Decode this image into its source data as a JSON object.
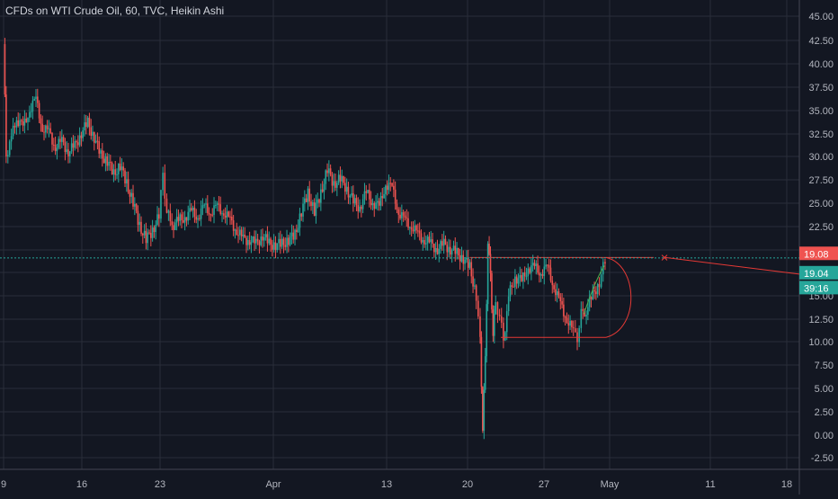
{
  "header": {
    "symbol_title": "CFDs on WTI Crude Oil, 60, TVC, Heikin Ashi"
  },
  "colors": {
    "background": "#131722",
    "grid": "#2a2e39",
    "up": "#26a69a",
    "down": "#ef5350",
    "axis_text": "#b2b5be",
    "drawing": "#e53935",
    "price_line": "#26a69a"
  },
  "chart_data": {
    "type": "candlestick",
    "style": "Heikin Ashi",
    "title": "CFDs on WTI Crude Oil, 60, TVC, Heikin Ashi",
    "grid": true,
    "y_ticks": [
      "45.00",
      "42.50",
      "40.00",
      "37.50",
      "35.00",
      "32.50",
      "30.00",
      "27.50",
      "25.00",
      "22.50",
      "20.00",
      "17.50",
      "15.00",
      "12.50",
      "10.00",
      "7.50",
      "5.00",
      "2.50",
      "0.00",
      "-2.50"
    ],
    "x_ticks": [
      "9",
      "16",
      "23",
      "Apr",
      "13",
      "20",
      "27",
      "May",
      "11",
      "18"
    ],
    "ylim": [
      -3.8,
      46.5
    ],
    "price_series_approx": [
      [
        9,
        42
      ],
      [
        9.2,
        30
      ],
      [
        9.6,
        32
      ],
      [
        10,
        34
      ],
      [
        10.5,
        33
      ],
      [
        11,
        35
      ],
      [
        11.5,
        36
      ],
      [
        12,
        33
      ],
      [
        12.5,
        32.5
      ],
      [
        13,
        31
      ],
      [
        13.5,
        31.5
      ],
      [
        14,
        30.5
      ],
      [
        14.5,
        31
      ],
      [
        15,
        32.5
      ],
      [
        15.5,
        33.5
      ],
      [
        16,
        32
      ],
      [
        16.5,
        30
      ],
      [
        17,
        29.5
      ],
      [
        17.5,
        28
      ],
      [
        18,
        29
      ],
      [
        18.5,
        27
      ],
      [
        19,
        25
      ],
      [
        19.5,
        22.5
      ],
      [
        20,
        21
      ],
      [
        20.5,
        22
      ],
      [
        21,
        23.5
      ],
      [
        21.3,
        28
      ],
      [
        21.6,
        24
      ],
      [
        22,
        22.5
      ],
      [
        22.5,
        23
      ],
      [
        23,
        23.5
      ],
      [
        23.5,
        24
      ],
      [
        24,
        23.5
      ],
      [
        24.5,
        24.5
      ],
      [
        25,
        24
      ],
      [
        25.5,
        24.5
      ],
      [
        26,
        24
      ],
      [
        26.5,
        23
      ],
      [
        27,
        22
      ],
      [
        27.5,
        21
      ],
      [
        28,
        21
      ],
      [
        28.5,
        20.5
      ],
      [
        29,
        21.5
      ],
      [
        29.5,
        20.5
      ],
      [
        30,
        20.5
      ],
      [
        30.5,
        20.5
      ],
      [
        31,
        21
      ],
      [
        31.5,
        21.5
      ],
      [
        32,
        24
      ],
      [
        32.5,
        26
      ],
      [
        33,
        24
      ],
      [
        33.5,
        26
      ],
      [
        34,
        28.5
      ],
      [
        34.5,
        27
      ],
      [
        35,
        27.5
      ],
      [
        35.5,
        26.5
      ],
      [
        36,
        25
      ],
      [
        36.5,
        24.5
      ],
      [
        37,
        26
      ],
      [
        37.5,
        25
      ],
      [
        38,
        24.5
      ],
      [
        38.5,
        27
      ],
      [
        39,
        26.5
      ],
      [
        39.5,
        24
      ],
      [
        40,
        23
      ],
      [
        40.5,
        22.5
      ],
      [
        41,
        21.5
      ],
      [
        41.5,
        21
      ],
      [
        42,
        20.5
      ],
      [
        42.5,
        20
      ],
      [
        43,
        20.5
      ],
      [
        43.5,
        20
      ],
      [
        44,
        19.5
      ],
      [
        44.5,
        19
      ],
      [
        45,
        18
      ],
      [
        45.5,
        15
      ],
      [
        45.8,
        10
      ],
      [
        46,
        1
      ],
      [
        46.2,
        8
      ],
      [
        46.4,
        21
      ],
      [
        46.6,
        17
      ],
      [
        46.8,
        11
      ],
      [
        47,
        14
      ],
      [
        47.3,
        13
      ],
      [
        47.6,
        10
      ],
      [
        48,
        15
      ],
      [
        48.5,
        17
      ],
      [
        49,
        16.5
      ],
      [
        49.5,
        18
      ],
      [
        50,
        18
      ],
      [
        50.5,
        17.5
      ],
      [
        51,
        18
      ],
      [
        51.5,
        16
      ],
      [
        52,
        14
      ],
      [
        52.5,
        12.5
      ],
      [
        53,
        11
      ],
      [
        53.3,
        10.5
      ],
      [
        53.6,
        13
      ],
      [
        54,
        13.5
      ],
      [
        54.5,
        15
      ],
      [
        55,
        16.5
      ],
      [
        55.3,
        18
      ],
      [
        55.6,
        19
      ]
    ],
    "annotations": {
      "last_price_label": "19.08",
      "current_price_label": "19.04",
      "countdown_label": "39:16",
      "horizontal_level": 19.08,
      "support_level": 10.5,
      "marker": "×"
    }
  }
}
